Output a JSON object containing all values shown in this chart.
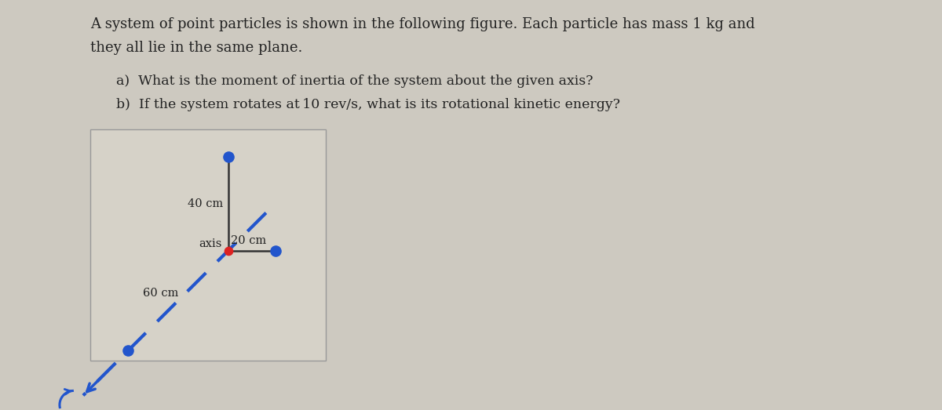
{
  "title_line1": "A system of point particles is shown in the following figure. Each particle has mass 1 kg and",
  "title_line2": "they all lie in the same plane.",
  "question_a": "a)  What is the moment of inertia of the system about the given axis?",
  "question_b": "b)  If the system rotates at 10 rev/s, what is its rotational kinetic energy?",
  "page_bg": "#cdc9c0",
  "box_bg": "#d6d2c8",
  "box_edge": "#999999",
  "particle_color": "#2255cc",
  "axis_color": "#dd2222",
  "line_color": "#333333",
  "dashed_color": "#2255cc",
  "label_40": "40 cm",
  "label_20": "20 cm",
  "label_axis": "axis",
  "label_60": "60 cm",
  "text_color": "#222222"
}
